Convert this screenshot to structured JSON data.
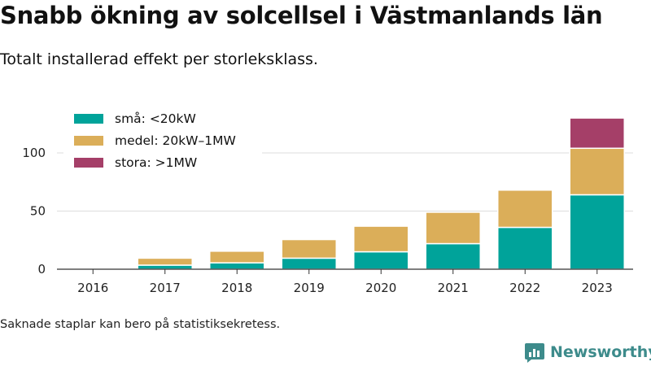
{
  "title": "Snabb ökning av solcellsel i Västmanlands län",
  "subtitle": "Totalt installerad effekt per storleksklass.",
  "note": "Saknade staplar kan bero på statistiksekretess.",
  "brand": {
    "name": "Newsworthy",
    "icon": "newsworthy-logo-icon",
    "color": "#3d8b8b"
  },
  "chart_data": {
    "type": "bar",
    "stacked": true,
    "categories": [
      "2016",
      "2017",
      "2018",
      "2019",
      "2020",
      "2021",
      "2022",
      "2023"
    ],
    "series": [
      {
        "name": "små: <20kW",
        "color": "#00a39a",
        "values": [
          0.3,
          3.5,
          5.5,
          9.5,
          15,
          22,
          36,
          64
        ]
      },
      {
        "name": "medel: 20kW–1MW",
        "color": "#dbae59",
        "values": [
          0.2,
          6,
          10,
          16,
          22,
          27,
          32,
          40
        ]
      },
      {
        "name": "stora: >1MW",
        "color": "#a53f68",
        "values": [
          0,
          0,
          0,
          0,
          0,
          0,
          0,
          26
        ]
      }
    ],
    "ylim": [
      0,
      130
    ],
    "yticks": [
      0,
      50,
      100
    ],
    "grid": true,
    "legend": "top-left"
  }
}
